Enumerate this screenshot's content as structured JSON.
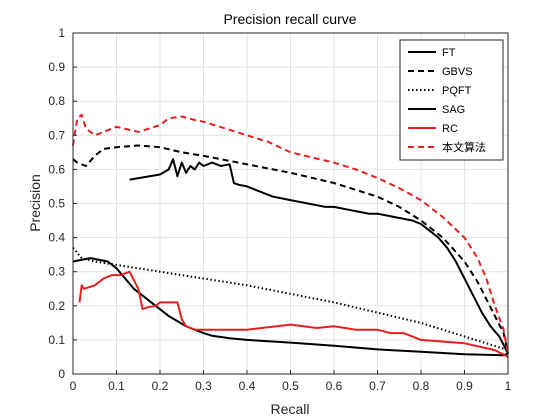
{
  "chart_data": {
    "type": "line",
    "title": "Precision recall curve",
    "xlabel": "Recall",
    "ylabel": "Precision",
    "xlim": [
      0,
      1
    ],
    "ylim": [
      0,
      1
    ],
    "xticks": [
      "0",
      "0.1",
      "0.2",
      "0.3",
      "0.4",
      "0.5",
      "0.6",
      "0.7",
      "0.8",
      "0.9",
      "1"
    ],
    "yticks": [
      "0",
      "0.1",
      "0.2",
      "0.3",
      "0.4",
      "0.5",
      "0.6",
      "0.7",
      "0.8",
      "0.9",
      "1"
    ],
    "grid": true,
    "legend_position": "top-right",
    "series": [
      {
        "name": "FT",
        "color": "#000000",
        "style": "solid",
        "width": 2,
        "x": [
          0.0,
          0.04,
          0.08,
          0.1,
          0.12,
          0.14,
          0.16,
          0.18,
          0.2,
          0.22,
          0.24,
          0.26,
          0.28,
          0.3,
          0.32,
          0.36,
          0.4,
          0.5,
          0.6,
          0.7,
          0.8,
          0.9,
          0.99,
          1.0
        ],
        "y": [
          0.33,
          0.34,
          0.33,
          0.31,
          0.28,
          0.25,
          0.23,
          0.21,
          0.19,
          0.17,
          0.155,
          0.14,
          0.13,
          0.12,
          0.112,
          0.105,
          0.1,
          0.092,
          0.083,
          0.072,
          0.065,
          0.058,
          0.055,
          0.06
        ]
      },
      {
        "name": "GBVS",
        "color": "#000000",
        "style": "dashed",
        "width": 2,
        "x": [
          0.0,
          0.01,
          0.03,
          0.05,
          0.07,
          0.1,
          0.15,
          0.2,
          0.25,
          0.3,
          0.4,
          0.5,
          0.6,
          0.7,
          0.75,
          0.8,
          0.85,
          0.9,
          0.93,
          0.95,
          0.97,
          0.99,
          1.0
        ],
        "y": [
          0.63,
          0.62,
          0.61,
          0.64,
          0.66,
          0.665,
          0.67,
          0.665,
          0.65,
          0.64,
          0.615,
          0.59,
          0.56,
          0.52,
          0.49,
          0.45,
          0.4,
          0.33,
          0.27,
          0.22,
          0.17,
          0.12,
          0.06
        ]
      },
      {
        "name": "PQFT",
        "color": "#000000",
        "style": "dotted",
        "width": 2,
        "x": [
          0.0,
          0.02,
          0.05,
          0.1,
          0.15,
          0.2,
          0.25,
          0.3,
          0.4,
          0.5,
          0.6,
          0.7,
          0.8,
          0.9,
          0.95,
          1.0
        ],
        "y": [
          0.37,
          0.34,
          0.33,
          0.32,
          0.31,
          0.3,
          0.29,
          0.28,
          0.26,
          0.235,
          0.21,
          0.18,
          0.15,
          0.11,
          0.09,
          0.07
        ]
      },
      {
        "name": "SAG",
        "color": "#000000",
        "style": "solid",
        "width": 2,
        "x": [
          0.13,
          0.2,
          0.22,
          0.23,
          0.24,
          0.25,
          0.26,
          0.27,
          0.28,
          0.29,
          0.3,
          0.32,
          0.34,
          0.36,
          0.37,
          0.38,
          0.4,
          0.42,
          0.44,
          0.46,
          0.48,
          0.5,
          0.52,
          0.54,
          0.56,
          0.58,
          0.6,
          0.62,
          0.64,
          0.66,
          0.68,
          0.7,
          0.72,
          0.74,
          0.76,
          0.78,
          0.8,
          0.82,
          0.84,
          0.86,
          0.88,
          0.9,
          0.92,
          0.94,
          0.96,
          0.98,
          1.0
        ],
        "y": [
          0.57,
          0.585,
          0.6,
          0.63,
          0.58,
          0.62,
          0.59,
          0.61,
          0.6,
          0.62,
          0.61,
          0.62,
          0.61,
          0.615,
          0.56,
          0.555,
          0.55,
          0.54,
          0.53,
          0.52,
          0.515,
          0.51,
          0.505,
          0.5,
          0.495,
          0.49,
          0.49,
          0.485,
          0.48,
          0.475,
          0.47,
          0.47,
          0.465,
          0.46,
          0.455,
          0.45,
          0.44,
          0.42,
          0.4,
          0.37,
          0.33,
          0.28,
          0.23,
          0.18,
          0.14,
          0.11,
          0.06
        ]
      },
      {
        "name": "RC",
        "color": "#e81e1e",
        "style": "solid",
        "width": 2,
        "x": [
          0.015,
          0.02,
          0.025,
          0.05,
          0.07,
          0.09,
          0.11,
          0.13,
          0.15,
          0.16,
          0.17,
          0.19,
          0.2,
          0.24,
          0.25,
          0.26,
          0.28,
          0.32,
          0.4,
          0.5,
          0.53,
          0.56,
          0.6,
          0.65,
          0.7,
          0.73,
          0.76,
          0.8,
          0.9,
          0.97,
          1.0
        ],
        "y": [
          0.21,
          0.26,
          0.25,
          0.26,
          0.28,
          0.29,
          0.29,
          0.3,
          0.25,
          0.19,
          0.195,
          0.2,
          0.21,
          0.21,
          0.16,
          0.14,
          0.13,
          0.13,
          0.13,
          0.145,
          0.14,
          0.135,
          0.14,
          0.13,
          0.13,
          0.12,
          0.12,
          0.1,
          0.09,
          0.07,
          0.05
        ]
      },
      {
        "name": "本文算法",
        "color": "#e81e1e",
        "style": "dashed",
        "width": 2,
        "x": [
          0.0,
          0.01,
          0.02,
          0.03,
          0.05,
          0.07,
          0.1,
          0.15,
          0.2,
          0.22,
          0.25,
          0.28,
          0.3,
          0.35,
          0.4,
          0.45,
          0.5,
          0.55,
          0.6,
          0.65,
          0.7,
          0.75,
          0.8,
          0.85,
          0.9,
          0.93,
          0.95,
          0.97,
          0.99,
          1.0
        ],
        "y": [
          0.67,
          0.75,
          0.76,
          0.72,
          0.7,
          0.71,
          0.725,
          0.71,
          0.73,
          0.75,
          0.755,
          0.745,
          0.74,
          0.72,
          0.7,
          0.68,
          0.65,
          0.635,
          0.62,
          0.6,
          0.575,
          0.545,
          0.51,
          0.46,
          0.4,
          0.34,
          0.28,
          0.2,
          0.13,
          0.06
        ]
      }
    ]
  }
}
